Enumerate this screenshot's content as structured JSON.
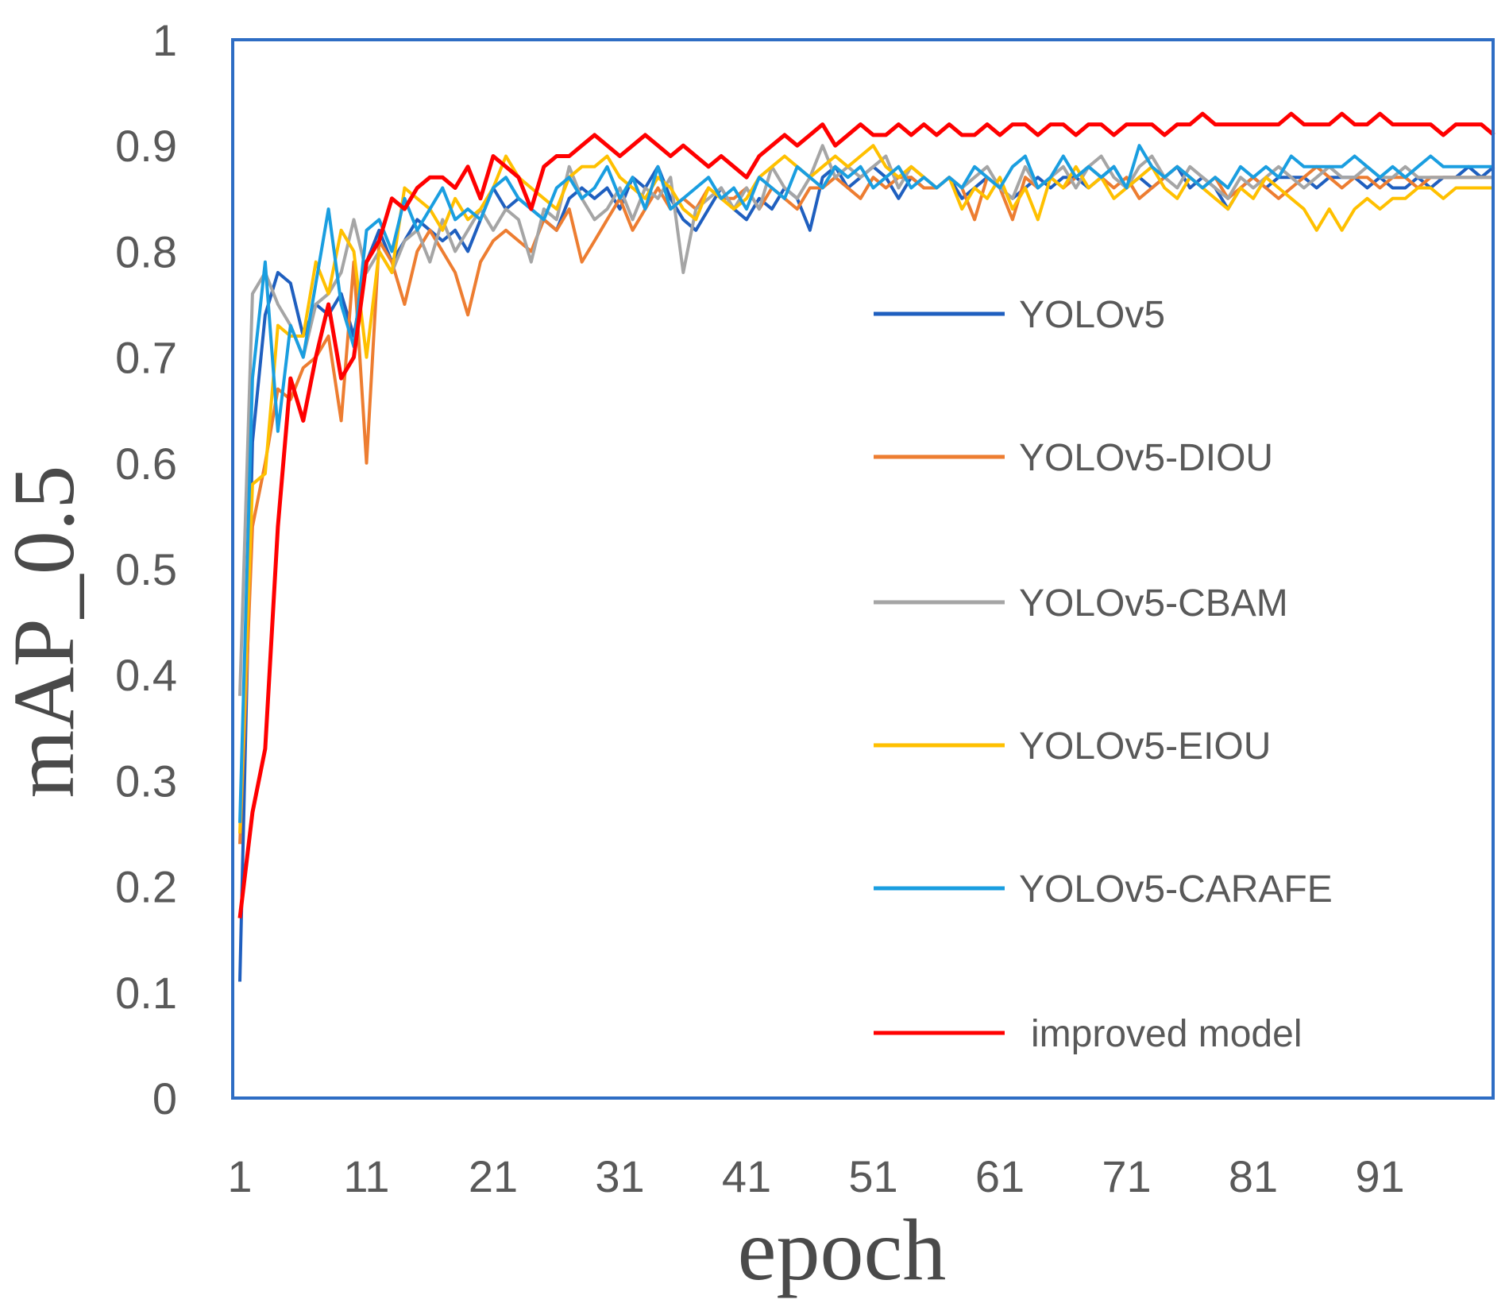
{
  "chart_data": {
    "type": "line",
    "title": "",
    "xlabel": "epoch",
    "ylabel": "mAP_0.5",
    "xlim": [
      1,
      100
    ],
    "ylim": [
      0,
      1
    ],
    "x_ticks": [
      "1",
      "11",
      "21",
      "31",
      "41",
      "51",
      "61",
      "71",
      "81",
      "91"
    ],
    "y_ticks": [
      "0",
      "0.1",
      "0.2",
      "0.3",
      "0.4",
      "0.5",
      "0.6",
      "0.7",
      "0.8",
      "0.9",
      "1"
    ],
    "grid": false,
    "legend_position": "right",
    "x": [
      1,
      2,
      3,
      4,
      5,
      6,
      7,
      8,
      9,
      10,
      11,
      12,
      13,
      14,
      15,
      16,
      17,
      18,
      19,
      20,
      21,
      22,
      23,
      24,
      25,
      26,
      27,
      28,
      29,
      30,
      31,
      32,
      33,
      34,
      35,
      36,
      37,
      38,
      39,
      40,
      41,
      42,
      43,
      44,
      45,
      46,
      47,
      48,
      49,
      50,
      51,
      52,
      53,
      54,
      55,
      56,
      57,
      58,
      59,
      60,
      61,
      62,
      63,
      64,
      65,
      66,
      67,
      68,
      69,
      70,
      71,
      72,
      73,
      74,
      75,
      76,
      77,
      78,
      79,
      80,
      81,
      82,
      83,
      84,
      85,
      86,
      87,
      88,
      89,
      90,
      91,
      92,
      93,
      94,
      95,
      96,
      97,
      98,
      99,
      100
    ],
    "series": [
      {
        "name": "YOLOv5",
        "color": "#1f5fbf",
        "values": [
          0.11,
          0.62,
          0.74,
          0.78,
          0.77,
          0.72,
          0.75,
          0.74,
          0.76,
          0.72,
          0.79,
          0.82,
          0.79,
          0.81,
          0.83,
          0.82,
          0.81,
          0.82,
          0.8,
          0.83,
          0.86,
          0.84,
          0.85,
          0.84,
          0.83,
          0.82,
          0.85,
          0.86,
          0.85,
          0.86,
          0.84,
          0.87,
          0.86,
          0.88,
          0.85,
          0.83,
          0.82,
          0.84,
          0.86,
          0.84,
          0.83,
          0.85,
          0.84,
          0.86,
          0.85,
          0.82,
          0.87,
          0.88,
          0.86,
          0.87,
          0.88,
          0.87,
          0.85,
          0.87,
          0.86,
          0.86,
          0.87,
          0.85,
          0.86,
          0.87,
          0.86,
          0.85,
          0.86,
          0.87,
          0.86,
          0.87,
          0.87,
          0.86,
          0.87,
          0.88,
          0.86,
          0.87,
          0.86,
          0.87,
          0.88,
          0.86,
          0.87,
          0.86,
          0.84,
          0.86,
          0.87,
          0.86,
          0.87,
          0.87,
          0.87,
          0.86,
          0.87,
          0.87,
          0.87,
          0.86,
          0.87,
          0.86,
          0.86,
          0.87,
          0.86,
          0.87,
          0.87,
          0.88,
          0.87,
          0.88
        ]
      },
      {
        "name": "YOLOv5-DIOU",
        "color": "#ed7d31",
        "values": [
          0.24,
          0.54,
          0.6,
          0.67,
          0.66,
          0.69,
          0.7,
          0.72,
          0.64,
          0.79,
          0.6,
          0.81,
          0.79,
          0.75,
          0.8,
          0.82,
          0.8,
          0.78,
          0.74,
          0.79,
          0.81,
          0.82,
          0.81,
          0.8,
          0.83,
          0.82,
          0.84,
          0.79,
          0.81,
          0.83,
          0.85,
          0.82,
          0.84,
          0.86,
          0.84,
          0.85,
          0.84,
          0.86,
          0.85,
          0.85,
          0.86,
          0.84,
          0.86,
          0.85,
          0.84,
          0.86,
          0.86,
          0.87,
          0.86,
          0.85,
          0.87,
          0.86,
          0.87,
          0.87,
          0.86,
          0.86,
          0.87,
          0.86,
          0.83,
          0.87,
          0.86,
          0.83,
          0.87,
          0.86,
          0.87,
          0.86,
          0.87,
          0.88,
          0.87,
          0.86,
          0.87,
          0.85,
          0.86,
          0.87,
          0.88,
          0.87,
          0.86,
          0.87,
          0.85,
          0.86,
          0.87,
          0.86,
          0.85,
          0.86,
          0.87,
          0.88,
          0.87,
          0.86,
          0.87,
          0.87,
          0.86,
          0.87,
          0.87,
          0.86,
          0.87,
          0.87,
          0.87,
          0.87,
          0.87,
          0.87
        ]
      },
      {
        "name": "YOLOv5-CBAM",
        "color": "#a5a5a5",
        "values": [
          0.38,
          0.76,
          0.78,
          0.75,
          0.73,
          0.7,
          0.75,
          0.76,
          0.78,
          0.83,
          0.78,
          0.8,
          0.78,
          0.81,
          0.82,
          0.79,
          0.83,
          0.8,
          0.82,
          0.84,
          0.82,
          0.84,
          0.83,
          0.79,
          0.84,
          0.83,
          0.88,
          0.85,
          0.83,
          0.84,
          0.86,
          0.83,
          0.86,
          0.85,
          0.87,
          0.78,
          0.84,
          0.85,
          0.86,
          0.84,
          0.86,
          0.84,
          0.88,
          0.86,
          0.85,
          0.87,
          0.9,
          0.87,
          0.88,
          0.87,
          0.88,
          0.89,
          0.86,
          0.88,
          0.87,
          0.86,
          0.87,
          0.86,
          0.87,
          0.88,
          0.86,
          0.85,
          0.88,
          0.86,
          0.87,
          0.88,
          0.86,
          0.88,
          0.89,
          0.87,
          0.86,
          0.88,
          0.89,
          0.87,
          0.86,
          0.88,
          0.87,
          0.86,
          0.85,
          0.87,
          0.86,
          0.87,
          0.88,
          0.87,
          0.86,
          0.87,
          0.88,
          0.87,
          0.87,
          0.88,
          0.87,
          0.87,
          0.88,
          0.87,
          0.87,
          0.87,
          0.87,
          0.87,
          0.87,
          0.87
        ]
      },
      {
        "name": "YOLOv5-EIOU",
        "color": "#ffc000",
        "values": [
          0.25,
          0.58,
          0.59,
          0.73,
          0.72,
          0.72,
          0.79,
          0.76,
          0.82,
          0.8,
          0.7,
          0.8,
          0.78,
          0.86,
          0.85,
          0.84,
          0.82,
          0.85,
          0.83,
          0.84,
          0.86,
          0.89,
          0.87,
          0.86,
          0.85,
          0.84,
          0.87,
          0.88,
          0.88,
          0.89,
          0.87,
          0.86,
          0.85,
          0.87,
          0.86,
          0.84,
          0.83,
          0.86,
          0.85,
          0.84,
          0.85,
          0.87,
          0.88,
          0.89,
          0.88,
          0.87,
          0.88,
          0.89,
          0.88,
          0.89,
          0.9,
          0.88,
          0.87,
          0.88,
          0.87,
          0.86,
          0.87,
          0.84,
          0.86,
          0.85,
          0.87,
          0.84,
          0.86,
          0.83,
          0.87,
          0.86,
          0.88,
          0.86,
          0.87,
          0.85,
          0.86,
          0.87,
          0.88,
          0.86,
          0.85,
          0.87,
          0.86,
          0.85,
          0.84,
          0.86,
          0.85,
          0.87,
          0.86,
          0.85,
          0.84,
          0.82,
          0.84,
          0.82,
          0.84,
          0.85,
          0.84,
          0.85,
          0.85,
          0.86,
          0.86,
          0.85,
          0.86,
          0.86,
          0.86,
          0.86
        ]
      },
      {
        "name": "YOLOv5-CARAFE",
        "color": "#1a9ee0",
        "values": [
          0.26,
          0.68,
          0.79,
          0.63,
          0.73,
          0.7,
          0.77,
          0.84,
          0.75,
          0.71,
          0.82,
          0.83,
          0.8,
          0.85,
          0.82,
          0.84,
          0.86,
          0.83,
          0.84,
          0.83,
          0.86,
          0.87,
          0.85,
          0.84,
          0.83,
          0.86,
          0.87,
          0.85,
          0.86,
          0.88,
          0.85,
          0.87,
          0.84,
          0.88,
          0.84,
          0.85,
          0.86,
          0.87,
          0.85,
          0.86,
          0.84,
          0.87,
          0.86,
          0.85,
          0.88,
          0.87,
          0.86,
          0.88,
          0.87,
          0.88,
          0.86,
          0.87,
          0.88,
          0.86,
          0.87,
          0.86,
          0.87,
          0.86,
          0.88,
          0.87,
          0.86,
          0.88,
          0.89,
          0.86,
          0.87,
          0.89,
          0.87,
          0.88,
          0.87,
          0.88,
          0.86,
          0.9,
          0.88,
          0.87,
          0.88,
          0.87,
          0.86,
          0.87,
          0.86,
          0.88,
          0.87,
          0.88,
          0.87,
          0.89,
          0.88,
          0.88,
          0.88,
          0.88,
          0.89,
          0.88,
          0.87,
          0.88,
          0.87,
          0.88,
          0.89,
          0.88,
          0.88,
          0.88,
          0.88,
          0.88
        ]
      },
      {
        "name": "improved model",
        "color": "#ff0000",
        "values": [
          0.17,
          0.27,
          0.33,
          0.54,
          0.68,
          0.64,
          0.7,
          0.75,
          0.68,
          0.7,
          0.79,
          0.81,
          0.85,
          0.84,
          0.86,
          0.87,
          0.87,
          0.86,
          0.88,
          0.85,
          0.89,
          0.88,
          0.87,
          0.84,
          0.88,
          0.89,
          0.89,
          0.9,
          0.91,
          0.9,
          0.89,
          0.9,
          0.91,
          0.9,
          0.89,
          0.9,
          0.89,
          0.88,
          0.89,
          0.88,
          0.87,
          0.89,
          0.9,
          0.91,
          0.9,
          0.91,
          0.92,
          0.9,
          0.91,
          0.92,
          0.91,
          0.91,
          0.92,
          0.91,
          0.92,
          0.91,
          0.92,
          0.91,
          0.91,
          0.92,
          0.91,
          0.92,
          0.92,
          0.91,
          0.92,
          0.92,
          0.91,
          0.92,
          0.92,
          0.91,
          0.92,
          0.92,
          0.92,
          0.91,
          0.92,
          0.92,
          0.93,
          0.92,
          0.92,
          0.92,
          0.92,
          0.92,
          0.92,
          0.93,
          0.92,
          0.92,
          0.92,
          0.93,
          0.92,
          0.92,
          0.93,
          0.92,
          0.92,
          0.92,
          0.92,
          0.91,
          0.92,
          0.92,
          0.92,
          0.91
        ]
      }
    ]
  }
}
